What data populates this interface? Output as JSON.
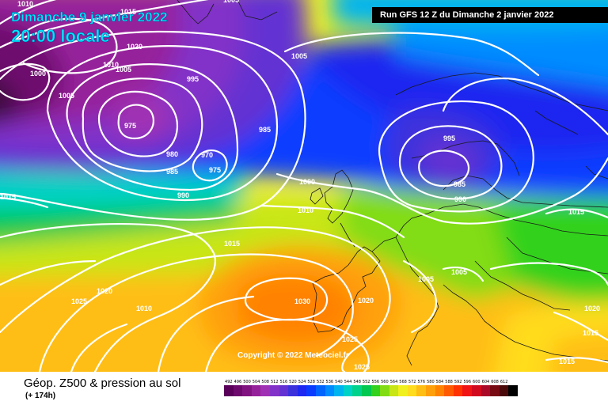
{
  "header": {
    "date": "Dimanche 9 janvier 2022",
    "time": "20:00 locale",
    "run": "Run GFS 12 Z du Dimanche 2 janvier 2022"
  },
  "footer": {
    "title": "Géop. Z500 & pression au sol",
    "subtitle": "(+ 174h)",
    "copyright": "Copyright © 2022 Meteociel.fr"
  },
  "legend": [
    {
      "label": "492",
      "color": "#5a005a"
    },
    {
      "label": "496",
      "color": "#6e0a6e"
    },
    {
      "label": "500",
      "color": "#821482"
    },
    {
      "label": "504",
      "color": "#96229b"
    },
    {
      "label": "508",
      "color": "#a030b4"
    },
    {
      "label": "512",
      "color": "#8232c8"
    },
    {
      "label": "516",
      "color": "#6432d2"
    },
    {
      "label": "520",
      "color": "#3c32dc"
    },
    {
      "label": "524",
      "color": "#1e28f0"
    },
    {
      "label": "528",
      "color": "#0a3cff"
    },
    {
      "label": "532",
      "color": "#0064ff"
    },
    {
      "label": "536",
      "color": "#008cff"
    },
    {
      "label": "540",
      "color": "#00b4f0"
    },
    {
      "label": "544",
      "color": "#00d2c8"
    },
    {
      "label": "548",
      "color": "#00d28c"
    },
    {
      "label": "552",
      "color": "#00c850"
    },
    {
      "label": "556",
      "color": "#32d21e"
    },
    {
      "label": "560",
      "color": "#82dc14"
    },
    {
      "label": "564",
      "color": "#c8e614"
    },
    {
      "label": "568",
      "color": "#f0f01e"
    },
    {
      "label": "572",
      "color": "#ffdc1e"
    },
    {
      "label": "576",
      "color": "#ffbe14"
    },
    {
      "label": "580",
      "color": "#ffa00a"
    },
    {
      "label": "584",
      "color": "#ff8200"
    },
    {
      "label": "588",
      "color": "#ff5a00"
    },
    {
      "label": "592",
      "color": "#ff3200"
    },
    {
      "label": "596",
      "color": "#f01414"
    },
    {
      "label": "600",
      "color": "#d20a1e"
    },
    {
      "label": "604",
      "color": "#aa0a28"
    },
    {
      "label": "608",
      "color": "#780a14"
    },
    {
      "label": "612",
      "color": "#4b0a0a"
    },
    {
      "label": "",
      "color": "#000000"
    }
  ],
  "isobar_labels": [
    "1010",
    "1015",
    "1000",
    "1020",
    "1010",
    "1005",
    "1005",
    "1005",
    "995",
    "975",
    "985",
    "980",
    "970",
    "975",
    "985",
    "990",
    "1015",
    "1000",
    "1010",
    "995",
    "985",
    "990",
    "1015",
    "1015",
    "1005",
    "1005",
    "1020",
    "1025",
    "1010",
    "1030",
    "1020",
    "1025",
    "1025",
    "1015",
    "1015",
    "1020",
    "1005"
  ]
}
